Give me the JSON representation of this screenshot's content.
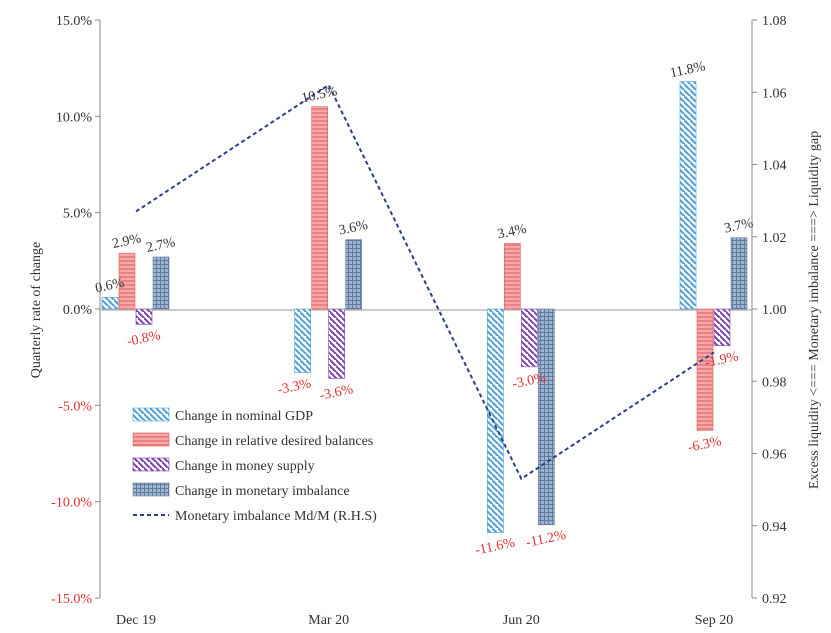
{
  "chart_data": {
    "type": "bar",
    "categories": [
      "Dec 19",
      "Mar 20",
      "Jun 20",
      "Sep 20"
    ],
    "ylabel": "Quarterly rate of change",
    "y2label": "Excess liquidity <=== Monetary imbalance ===> Liquidity gap",
    "ylim": [
      -15,
      15
    ],
    "y2lim": [
      0.92,
      1.08
    ],
    "yticks": [
      "15.0%",
      "10.0%",
      "5.0%",
      "0.0%",
      "-5.0%",
      "-10.0%",
      "-15.0%"
    ],
    "y2ticks": [
      "1.08",
      "1.06",
      "1.04",
      "1.02",
      "1.00",
      "0.98",
      "0.96",
      "0.94",
      "0.92"
    ],
    "legend_position": "bottom-left inside",
    "series": [
      {
        "name": "Change in nominal GDP",
        "values": [
          0.6,
          -3.3,
          -11.6,
          11.8
        ],
        "labels": [
          "0.6%",
          "",
          "-11.6%",
          "11.8%"
        ],
        "color": "#4a9fd6",
        "pattern": "diagonal-down"
      },
      {
        "name": "Change in relative desired balances",
        "values": [
          2.9,
          10.5,
          3.4,
          -6.3
        ],
        "labels": [
          "2.9%",
          "10.5%",
          "3.4%",
          "-6.3%"
        ],
        "color": "#f08080",
        "pattern": "horizontal"
      },
      {
        "name": "Change in money supply",
        "values": [
          -0.8,
          -3.6,
          -3.0,
          -1.9
        ],
        "labels": [
          "-0.8%",
          "-3.6%",
          "-3.0%",
          "-1.9%"
        ],
        "color": "#7a3fb0",
        "pattern": "diagonal-down"
      },
      {
        "name": "Change in monetary imbalance",
        "values": [
          2.7,
          3.6,
          -11.2,
          3.7
        ],
        "labels": [
          "2.7%",
          "3.6%",
          "-11.2%",
          "3.7%"
        ],
        "color": "#6e8fb5",
        "pattern": "grid"
      }
    ],
    "extra_labels": [
      {
        "text": "-3.3%",
        "category": "Mar 20",
        "series": "Change in nominal GDP"
      }
    ],
    "line_series": {
      "name": "Monetary imbalance Md/M (R.H.S)",
      "axis": "right",
      "values": [
        1.027,
        1.062,
        0.953,
        0.988
      ],
      "color": "#2b3f8c",
      "style": "dashed"
    }
  }
}
